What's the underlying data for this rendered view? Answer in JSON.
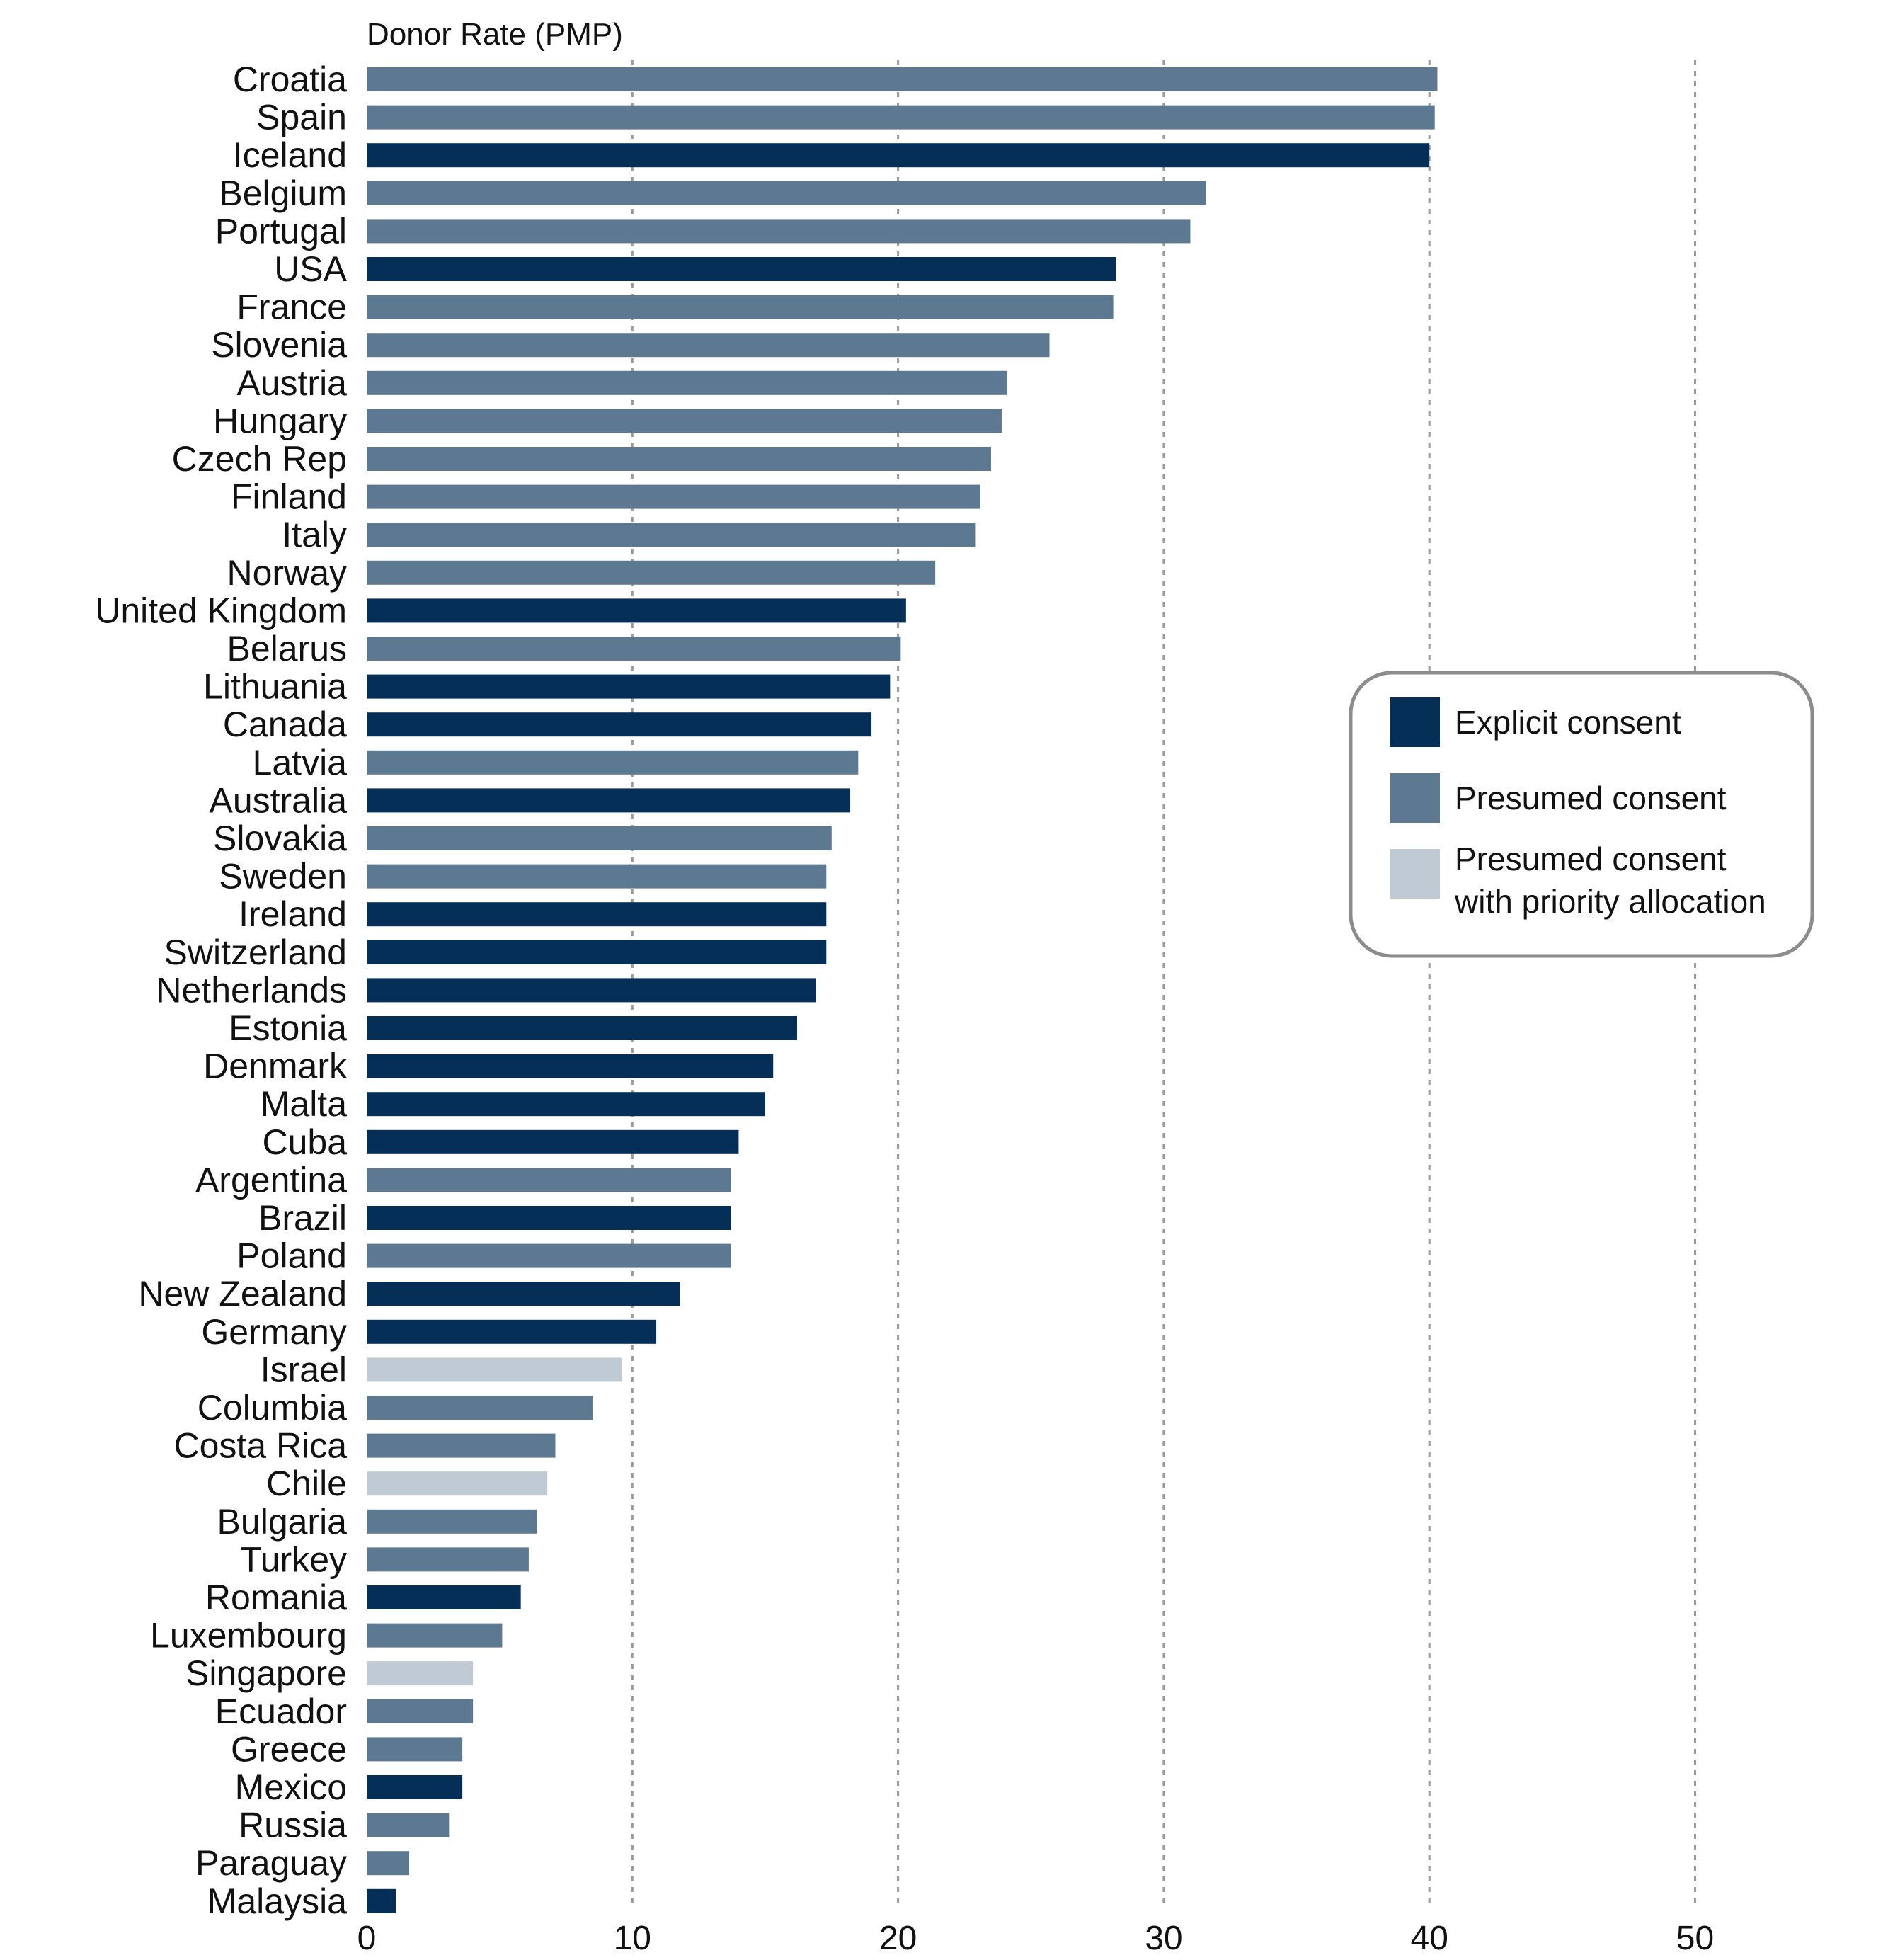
{
  "chart_data": {
    "type": "bar",
    "orientation": "horizontal",
    "xlabel": "Donor Rate (PMP)",
    "xlim": [
      0,
      55
    ],
    "xticks": [
      0,
      10,
      20,
      30,
      40,
      50
    ],
    "grid": true,
    "legend_position": "right",
    "categories": [
      {
        "name": "explicit",
        "label": "Explicit consent",
        "color": "#062f57"
      },
      {
        "name": "presumed",
        "label": "Presumed consent",
        "color": "#5d7991"
      },
      {
        "name": "priority",
        "label": "Presumed consent with priority allocation",
        "label_lines": [
          "Presumed consent",
          "with priority allocation"
        ],
        "color": "#bfcad4"
      }
    ],
    "countries": [
      {
        "name": "Croatia",
        "value": 40.3,
        "type": "presumed"
      },
      {
        "name": "Spain",
        "value": 40.2,
        "type": "presumed"
      },
      {
        "name": "Iceland",
        "value": 40.0,
        "type": "explicit"
      },
      {
        "name": "Belgium",
        "value": 31.6,
        "type": "presumed"
      },
      {
        "name": "Portugal",
        "value": 31.0,
        "type": "presumed"
      },
      {
        "name": "USA",
        "value": 28.2,
        "type": "explicit"
      },
      {
        "name": "France",
        "value": 28.1,
        "type": "presumed"
      },
      {
        "name": "Slovenia",
        "value": 25.7,
        "type": "presumed"
      },
      {
        "name": "Austria",
        "value": 24.1,
        "type": "presumed"
      },
      {
        "name": "Hungary",
        "value": 23.9,
        "type": "presumed"
      },
      {
        "name": "Czech Rep",
        "value": 23.5,
        "type": "presumed"
      },
      {
        "name": "Finland",
        "value": 23.1,
        "type": "presumed"
      },
      {
        "name": "Italy",
        "value": 22.9,
        "type": "presumed"
      },
      {
        "name": "Norway",
        "value": 21.4,
        "type": "presumed"
      },
      {
        "name": "United Kingdom",
        "value": 20.3,
        "type": "explicit"
      },
      {
        "name": "Belarus",
        "value": 20.1,
        "type": "presumed"
      },
      {
        "name": "Lithuania",
        "value": 19.7,
        "type": "explicit"
      },
      {
        "name": "Canada",
        "value": 19.0,
        "type": "explicit"
      },
      {
        "name": "Latvia",
        "value": 18.5,
        "type": "presumed"
      },
      {
        "name": "Australia",
        "value": 18.2,
        "type": "explicit"
      },
      {
        "name": "Slovakia",
        "value": 17.5,
        "type": "presumed"
      },
      {
        "name": "Sweden",
        "value": 17.3,
        "type": "presumed"
      },
      {
        "name": "Ireland",
        "value": 17.3,
        "type": "explicit"
      },
      {
        "name": "Switzerland",
        "value": 17.3,
        "type": "explicit"
      },
      {
        "name": "Netherlands",
        "value": 16.9,
        "type": "explicit"
      },
      {
        "name": "Estonia",
        "value": 16.2,
        "type": "explicit"
      },
      {
        "name": "Denmark",
        "value": 15.3,
        "type": "explicit"
      },
      {
        "name": "Malta",
        "value": 15.0,
        "type": "explicit"
      },
      {
        "name": "Cuba",
        "value": 14.0,
        "type": "explicit"
      },
      {
        "name": "Argentina",
        "value": 13.7,
        "type": "presumed"
      },
      {
        "name": "Brazil",
        "value": 13.7,
        "type": "explicit"
      },
      {
        "name": "Poland",
        "value": 13.7,
        "type": "presumed"
      },
      {
        "name": "New Zealand",
        "value": 11.8,
        "type": "explicit"
      },
      {
        "name": "Germany",
        "value": 10.9,
        "type": "explicit"
      },
      {
        "name": "Israel",
        "value": 9.6,
        "type": "priority"
      },
      {
        "name": "Columbia",
        "value": 8.5,
        "type": "presumed"
      },
      {
        "name": "Costa Rica",
        "value": 7.1,
        "type": "presumed"
      },
      {
        "name": "Chile",
        "value": 6.8,
        "type": "priority"
      },
      {
        "name": "Bulgaria",
        "value": 6.4,
        "type": "presumed"
      },
      {
        "name": "Turkey",
        "value": 6.1,
        "type": "presumed"
      },
      {
        "name": "Romania",
        "value": 5.8,
        "type": "explicit"
      },
      {
        "name": "Luxembourg",
        "value": 5.1,
        "type": "presumed"
      },
      {
        "name": "Singapore",
        "value": 4.0,
        "type": "priority"
      },
      {
        "name": "Ecuador",
        "value": 4.0,
        "type": "presumed"
      },
      {
        "name": "Greece",
        "value": 3.6,
        "type": "presumed"
      },
      {
        "name": "Mexico",
        "value": 3.6,
        "type": "explicit"
      },
      {
        "name": "Russia",
        "value": 3.1,
        "type": "presumed"
      },
      {
        "name": "Paraguay",
        "value": 1.6,
        "type": "presumed"
      },
      {
        "name": "Malaysia",
        "value": 1.1,
        "type": "explicit"
      }
    ]
  }
}
